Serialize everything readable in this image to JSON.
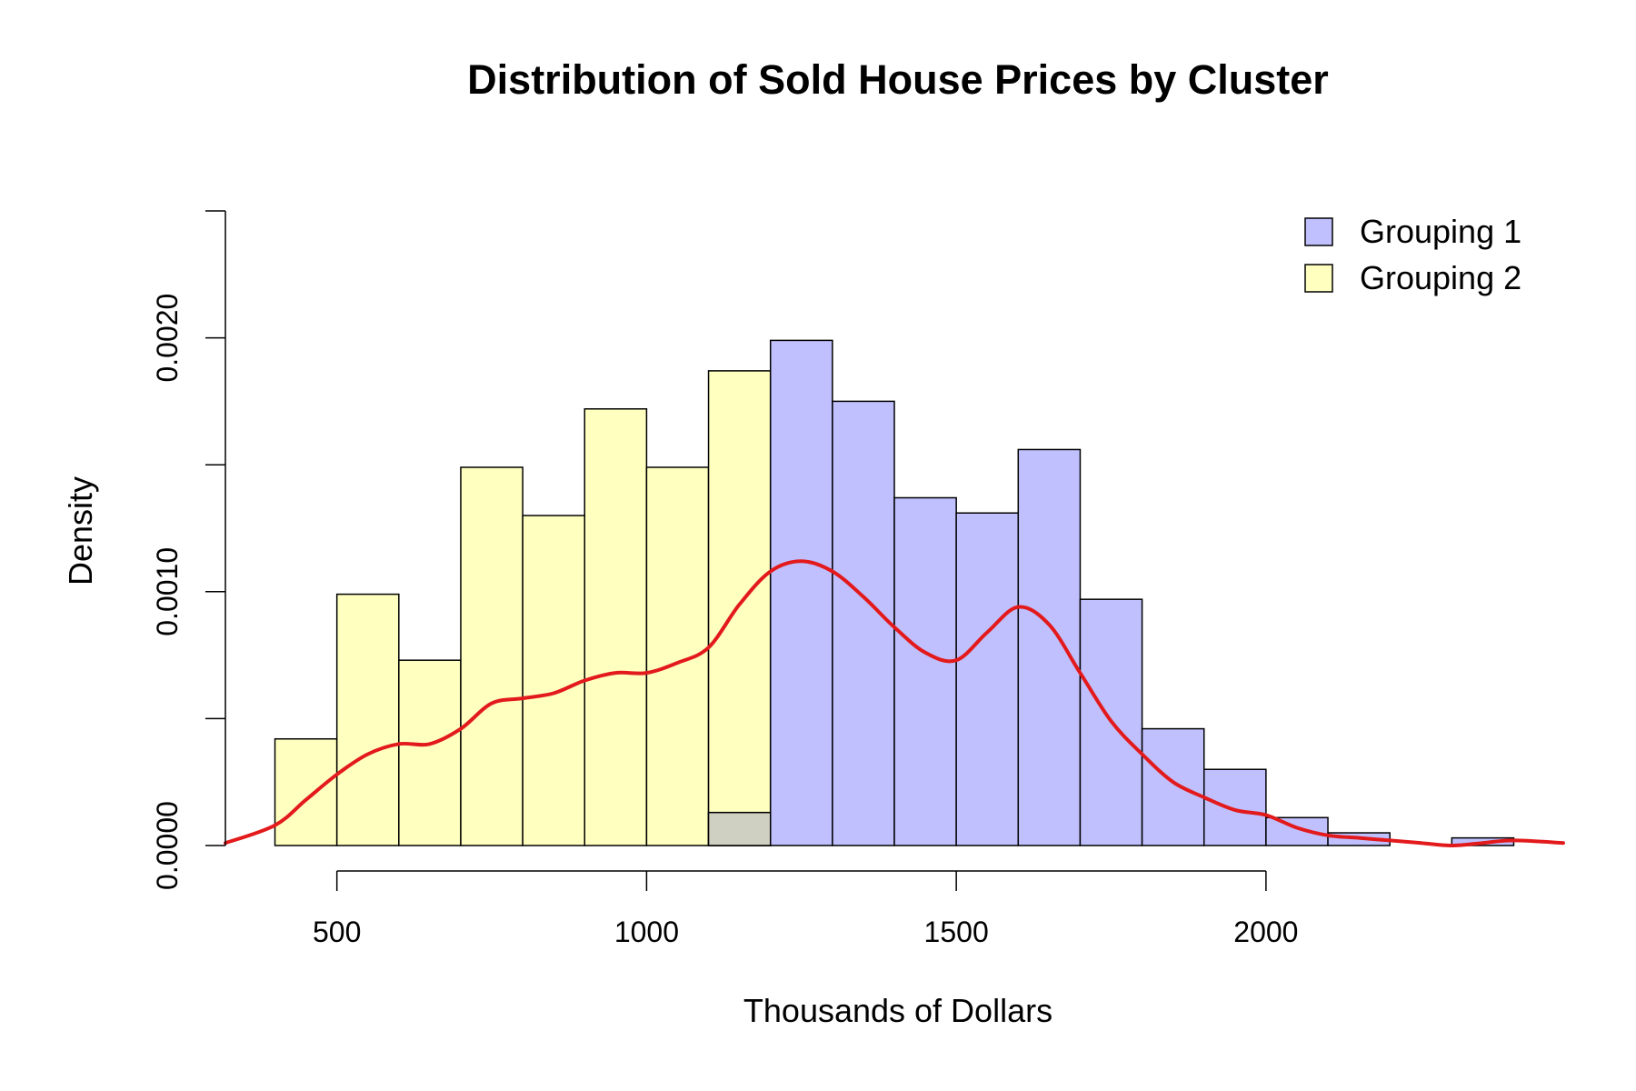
{
  "chart_data": {
    "type": "bar",
    "title": "Distribution of Sold House Prices by Cluster",
    "xlabel": "Thousands of Dollars",
    "ylabel": "Density",
    "xlim": [
      320,
      2480
    ],
    "ylim": [
      0,
      0.0025
    ],
    "x_ticks": [
      500,
      1000,
      1500,
      2000
    ],
    "x_tick_labels": [
      "500",
      "1000",
      "1500",
      "2000"
    ],
    "y_ticks": [
      0,
      0.0005,
      0.001,
      0.0015,
      0.002,
      0.0025
    ],
    "y_tick_labels": [
      "0.0000",
      "0.0010",
      "0.0020"
    ],
    "y_labeled_ticks": [
      0,
      0.001,
      0.002
    ],
    "grid": false,
    "legend_position": "top-right",
    "colors": {
      "grouping1": "#c0c0ff",
      "grouping2": "#ffffc0",
      "overlap": "#d0d0c2",
      "density_line": "#e31a1c"
    },
    "series": [
      {
        "name": "Grouping 1",
        "bins": [
          [
            1100,
            1200,
            0.00013
          ],
          [
            1200,
            1300,
            0.00199
          ],
          [
            1300,
            1400,
            0.00175
          ],
          [
            1400,
            1500,
            0.00137
          ],
          [
            1500,
            1600,
            0.00131
          ],
          [
            1600,
            1700,
            0.00156
          ],
          [
            1700,
            1800,
            0.00097
          ],
          [
            1800,
            1900,
            0.00046
          ],
          [
            1900,
            2000,
            0.0003
          ],
          [
            2000,
            2100,
            0.00011
          ],
          [
            2100,
            2200,
            5e-05
          ],
          [
            2200,
            2300,
            0.0
          ],
          [
            2300,
            2400,
            3e-05
          ]
        ]
      },
      {
        "name": "Grouping 2",
        "bins": [
          [
            400,
            500,
            0.00042
          ],
          [
            500,
            600,
            0.00099
          ],
          [
            600,
            700,
            0.00073
          ],
          [
            700,
            800,
            0.00149
          ],
          [
            800,
            900,
            0.0013
          ],
          [
            900,
            1000,
            0.00172
          ],
          [
            1000,
            1100,
            0.00149
          ],
          [
            1100,
            1200,
            0.00187
          ]
        ]
      }
    ],
    "density_curve": {
      "x": [
        320,
        400,
        450,
        500,
        550,
        600,
        650,
        700,
        750,
        800,
        850,
        900,
        950,
        1000,
        1050,
        1100,
        1150,
        1200,
        1250,
        1300,
        1350,
        1400,
        1450,
        1500,
        1550,
        1600,
        1650,
        1700,
        1750,
        1800,
        1850,
        1900,
        1950,
        2000,
        2050,
        2100,
        2150,
        2200,
        2250,
        2300,
        2350,
        2400,
        2480
      ],
      "y": [
        1e-05,
        8e-05,
        0.00018,
        0.00028,
        0.00036,
        0.0004,
        0.0004,
        0.00046,
        0.00056,
        0.00058,
        0.0006,
        0.00065,
        0.00068,
        0.00068,
        0.00072,
        0.00078,
        0.00095,
        0.00108,
        0.00112,
        0.00108,
        0.00098,
        0.00086,
        0.00076,
        0.00073,
        0.00084,
        0.00094,
        0.00087,
        0.00068,
        0.00049,
        0.00036,
        0.00025,
        0.00019,
        0.00014,
        0.00012,
        7e-05,
        4e-05,
        3e-05,
        2e-05,
        1e-05,
        0.0,
        1e-05,
        2e-05,
        1e-05
      ]
    }
  }
}
